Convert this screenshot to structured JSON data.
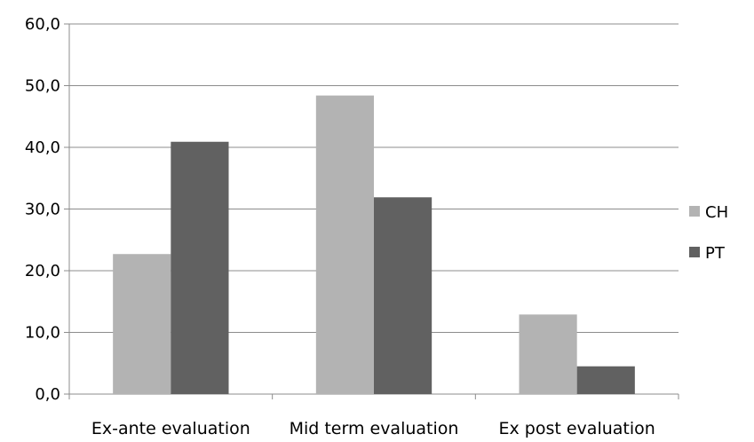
{
  "chart_data": {
    "type": "bar",
    "title": "",
    "xlabel": "",
    "ylabel": "",
    "categories": [
      "Ex-ante evaluation",
      "Mid term evaluation",
      "Ex post evaluation"
    ],
    "series": [
      {
        "name": "CH",
        "values": [
          22.7,
          48.4,
          12.9
        ],
        "color": "#b3b3b3"
      },
      {
        "name": "PT",
        "values": [
          40.9,
          31.9,
          4.5
        ],
        "color": "#616161"
      }
    ],
    "ylim": [
      0,
      60
    ],
    "yticks": [
      "0,0",
      "10,0",
      "20,0",
      "30,0",
      "40,0",
      "50,0",
      "60,0"
    ],
    "grid": "horizontal",
    "legend": "right"
  }
}
